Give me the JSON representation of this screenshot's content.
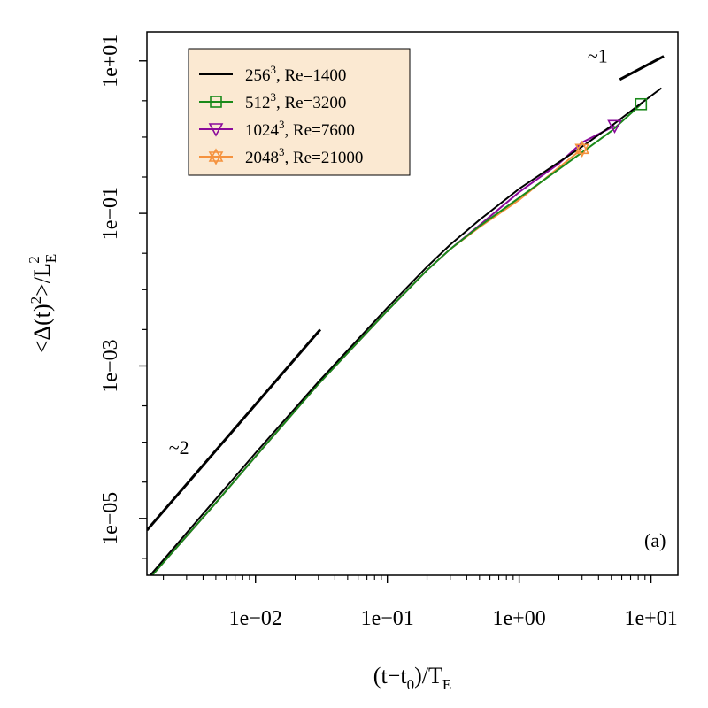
{
  "chart_data": {
    "type": "line",
    "scale": "log-log",
    "xlabel": {
      "base": "(t−t",
      "sub": "0",
      "mid": ")/T",
      "sub2": "E"
    },
    "ylabel": {
      "main": "<Δ(t)",
      "sup": "2",
      "mid": ">/L",
      "sub": "E",
      "sup2": "2"
    },
    "xlim": [
      0.0015,
      16
    ],
    "ylim": [
      1.8e-06,
      24
    ],
    "x_ticks": [
      {
        "v": 0.01,
        "label": "1e−02"
      },
      {
        "v": 0.1,
        "label": "1e−01"
      },
      {
        "v": 1,
        "label": "1e+00"
      },
      {
        "v": 10,
        "label": "1e+01"
      }
    ],
    "y_ticks": [
      {
        "v": 1e-05,
        "label": "1e−05"
      },
      {
        "v": 0.001,
        "label": "1e−03"
      },
      {
        "v": 0.1,
        "label": "1e−01"
      },
      {
        "v": 10,
        "label": "1e+01"
      }
    ],
    "y_minor_ticks": [
      0.0001,
      0.01,
      1,
      3e-06,
      3e-05,
      0.0003,
      0.003,
      0.03,
      0.3,
      3
    ],
    "legend": {
      "position": "top-left",
      "background": "#fbe9d2",
      "entries": [
        {
          "base": "256",
          "sup": "3",
          "rest": ", Re=1400",
          "color": "#000000",
          "marker": "none"
        },
        {
          "base": "512",
          "sup": "3",
          "rest": ", Re=3200",
          "color": "#1a8a1a",
          "marker": "square"
        },
        {
          "base": "1024",
          "sup": "3",
          "rest": ", Re=7600",
          "color": "#8b0a9b",
          "marker": "triangle-down"
        },
        {
          "base": "2048",
          "sup": "3",
          "rest": ", Re=21000",
          "color": "#f5923e",
          "marker": "star"
        }
      ]
    },
    "series": [
      {
        "color": "#000000",
        "marker": "none",
        "x": [
          0.0015,
          0.005,
          0.01,
          0.03,
          0.1,
          0.2,
          0.3,
          0.5,
          1,
          2,
          3,
          5,
          8,
          12
        ],
        "y": [
          1.6e-06,
          1.8e-05,
          7.2e-05,
          0.00062,
          0.0058,
          0.02,
          0.039,
          0.082,
          0.21,
          0.47,
          0.75,
          1.4,
          2.6,
          4.4
        ]
      },
      {
        "color": "#1a8a1a",
        "marker": "square",
        "x": [
          0.0015,
          0.005,
          0.01,
          0.03,
          0.1,
          0.2,
          0.3,
          0.5,
          1,
          2,
          3,
          5,
          8.4
        ],
        "y": [
          1.5e-06,
          1.6e-05,
          6.5e-05,
          0.00058,
          0.0053,
          0.018,
          0.034,
          0.068,
          0.16,
          0.38,
          0.63,
          1.2,
          2.7
        ],
        "marker_points": [
          [
            8.4,
            2.7
          ]
        ]
      },
      {
        "color": "#8b0a9b",
        "marker": "triangle-down",
        "x": [
          0.0015,
          0.005,
          0.01,
          0.03,
          0.1,
          0.2,
          0.3,
          0.5,
          1,
          2,
          3,
          5.3
        ],
        "y": [
          1.5e-06,
          1.6e-05,
          6.5e-05,
          0.00058,
          0.0053,
          0.018,
          0.034,
          0.07,
          0.19,
          0.45,
          0.85,
          1.4
        ],
        "marker_points": [
          [
            5.3,
            1.4
          ]
        ]
      },
      {
        "color": "#f5923e",
        "marker": "star",
        "x": [
          0.0015,
          0.005,
          0.01,
          0.03,
          0.1,
          0.2,
          0.3,
          0.5,
          1,
          2,
          3
        ],
        "y": [
          1.5e-06,
          1.6e-05,
          6.5e-05,
          0.00058,
          0.0053,
          0.018,
          0.034,
          0.066,
          0.15,
          0.4,
          0.7
        ],
        "marker_points": [
          [
            3,
            0.7
          ]
        ]
      }
    ],
    "reference_lines": [
      {
        "label": "~2",
        "x": [
          0.0015,
          0.031
        ],
        "y": [
          7e-06,
          0.003
        ],
        "label_at": [
          0.0022,
          7e-05
        ]
      },
      {
        "label": "~1",
        "x": [
          5.8,
          12.5
        ],
        "y": [
          5.7,
          11.5
        ],
        "label_at": [
          3.3,
          9.5
        ]
      }
    ],
    "annotation": "(a)"
  }
}
